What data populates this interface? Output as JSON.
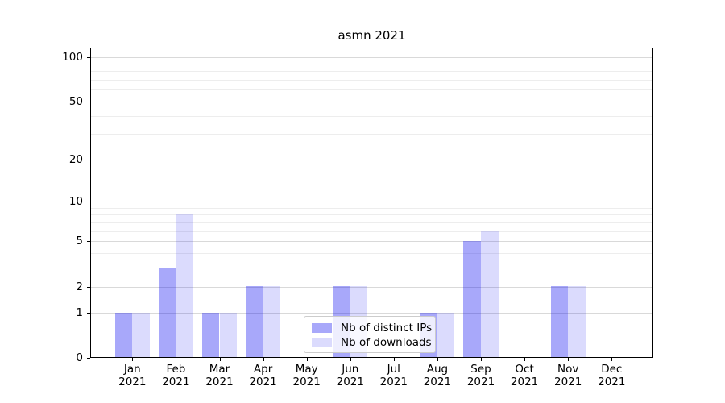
{
  "chart_data": {
    "type": "bar",
    "title": "asmn 2021",
    "categories": [
      "Jan",
      "Feb",
      "Mar",
      "Apr",
      "May",
      "Jun",
      "Jul",
      "Aug",
      "Sep",
      "Oct",
      "Nov",
      "Dec"
    ],
    "category_year": "2021",
    "series": [
      {
        "name": "Nb of distinct IPs",
        "color": "rgba(0,0,240,0.34)",
        "values": [
          1,
          3,
          1,
          2,
          0,
          2,
          0,
          1,
          5,
          0,
          2,
          0
        ]
      },
      {
        "name": "Nb of downloads",
        "color": "rgba(0,0,240,0.14)",
        "values": [
          1,
          8,
          1,
          2,
          0,
          2,
          0,
          1,
          6,
          0,
          2,
          0
        ]
      }
    ],
    "y_axis": {
      "scale": "log1p",
      "major_ticks": [
        0,
        1,
        2,
        5,
        10,
        20,
        50,
        100
      ],
      "minor_gridlines": [
        3,
        4,
        6,
        7,
        8,
        9,
        30,
        40,
        60,
        70,
        80,
        90
      ],
      "ylim": [
        0,
        110
      ]
    },
    "x_axis": {
      "tick_label_format": "month_over_year"
    },
    "legend": {
      "position": "lower center",
      "entries": [
        "Nb of distinct IPs",
        "Nb of downloads"
      ]
    },
    "grid": true
  },
  "colors": {
    "major_grid": "#d9d9d9",
    "minor_grid": "#ededed",
    "spine": "#000000",
    "text": "#000000",
    "legend_border": "#cccccc",
    "legend_bg": "rgba(255,255,255,0.8)"
  }
}
